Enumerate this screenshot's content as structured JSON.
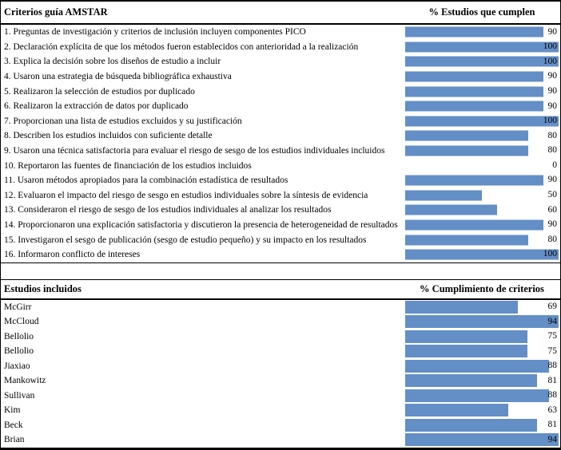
{
  "colors": {
    "bar": "#638ec6",
    "border": "#000000",
    "background": "#ffffff"
  },
  "chart_data": [
    {
      "type": "bar",
      "orientation": "horizontal",
      "title": "Criterios guía AMSTAR",
      "value_header": "% Estudios que cumplen",
      "categories": [
        "1. Preguntas de investigación y criterios de inclusión incluyen componentes PICO",
        "2. Declaración explícita de que los métodos fueron establecidos con anterioridad a la realización",
        "3. Explica la decisión sobre los diseños de estudio a incluir",
        "4. Usaron una estrategia de búsqueda bibliográfica exhaustiva",
        "5. Realizaron la selección de estudios por duplicado",
        "6. Realizaron la extracción de datos por duplicado",
        "7. Proporcionan una lista de estudios excluidos y su justificación",
        "8. Describen los estudios incluidos con suficiente detalle",
        "9. Usaron una técnica satisfactoria para evaluar el riesgo de sesgo de los estudios individuales incluidos",
        "10. Reportaron las fuentes de financiación de los estudios incluidos",
        "11. Usaron métodos apropiados para la combinación estadística de resultados",
        "12. Evaluaron el impacto del riesgo de sesgo en estudios individuales sobre la síntesis de evidencia",
        "13. Consideraron el riesgo de sesgo de los estudios individuales al analizar los resultados",
        "14. Proporcionaron una explicación satisfactoria y discutieron la presencia de heterogeneidad de resultados",
        "15. Investigaron el sesgo de publicación (sesgo de estudio pequeño) y su impacto en los resultados",
        "16. Informaron conflicto de intereses"
      ],
      "values": [
        90,
        100,
        100,
        90,
        90,
        90,
        100,
        80,
        80,
        0,
        90,
        50,
        60,
        90,
        80,
        100
      ],
      "xlim": [
        0,
        100
      ],
      "bar_color": "#638ec6",
      "grid": false,
      "legend": false
    },
    {
      "type": "bar",
      "orientation": "horizontal",
      "title": "Estudios incluidos",
      "value_header": "% Cumplimiento de criterios",
      "categories": [
        "McGirr",
        "McCloud",
        "Bellolio",
        "Bellolio",
        "Jiaxiao",
        "Mankowitz",
        "Sullivan",
        "Kim",
        "Beck",
        "Brian"
      ],
      "values": [
        69,
        94,
        75,
        75,
        88,
        81,
        88,
        63,
        81,
        94
      ],
      "xlim": [
        0,
        94
      ],
      "bar_color": "#638ec6",
      "grid": false,
      "legend": false
    }
  ]
}
